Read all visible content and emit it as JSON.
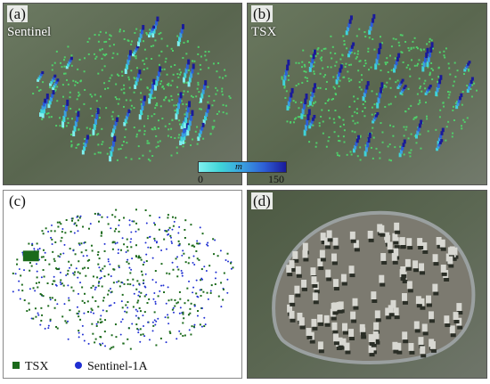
{
  "panels": {
    "a": {
      "letter": "(a)",
      "sublabel": "Sentinel"
    },
    "b": {
      "letter": "(b)",
      "sublabel": "TSX"
    },
    "c": {
      "letter": "(c)",
      "legend": [
        {
          "label": "TSX",
          "color": "#1b6a1b",
          "marker": "square"
        },
        {
          "label": "Sentinel-1A",
          "color": "#1f2fd2",
          "marker": "circle"
        }
      ]
    },
    "d": {
      "letter": "(d)"
    }
  },
  "colorbar": {
    "min": "0",
    "max": "150",
    "unit": "m",
    "colors": [
      "#7ff0ef",
      "#3fd4d8",
      "#3aa0e0",
      "#2e5fd6",
      "#1a1a9a"
    ]
  },
  "colors": {
    "satellite_bg": "#5f6b55",
    "ground_points": "#4fd06a",
    "tsx": "#1b6a1b",
    "sentinel": "#1f2fd2"
  }
}
